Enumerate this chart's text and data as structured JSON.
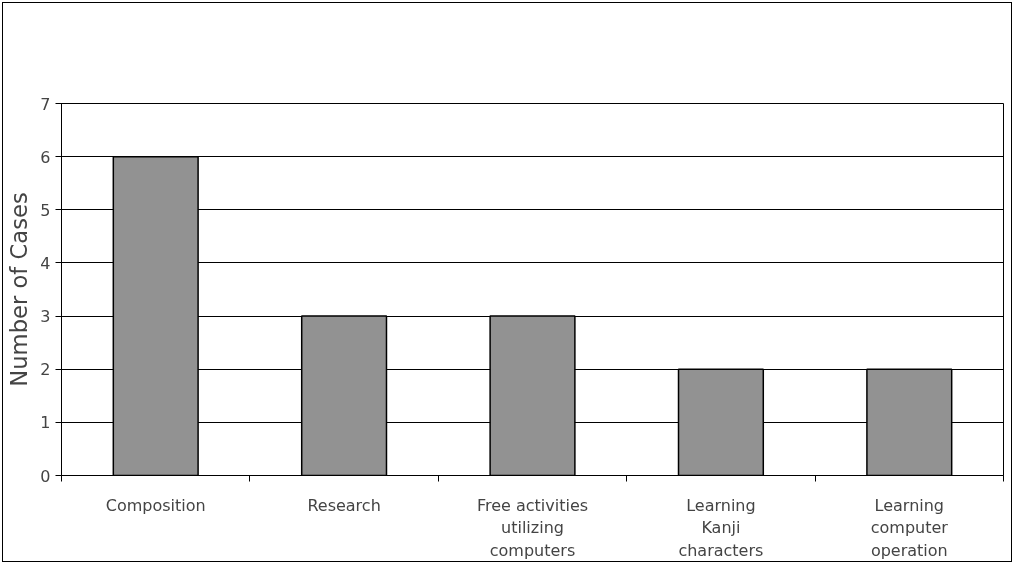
{
  "chart_data": {
    "type": "bar",
    "ylabel": "Number of Cases",
    "categories": [
      "Composition",
      "Research",
      "Free activities\nutilizing\ncomputers",
      "Learning\nKanji\ncharacters",
      "Learning\ncomputer\noperation"
    ],
    "values": [
      6,
      3,
      3,
      2,
      2
    ],
    "color": "#929292",
    "ylim": [
      0,
      7
    ],
    "yticks": [
      0,
      1,
      2,
      3,
      4,
      5,
      6,
      7
    ],
    "grid": "y"
  }
}
